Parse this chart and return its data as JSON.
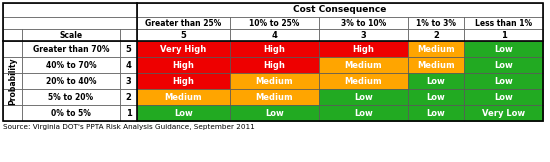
{
  "title": "Cost Consequence",
  "source_text": "Source: Virginia DOT's PPTA Risk Analysis Guidance, September 2011",
  "col_headers": [
    "Greater than 25%",
    "10% to 25%",
    "3% to 10%",
    "1% to 3%",
    "Less than 1%"
  ],
  "col_scales": [
    "5",
    "4",
    "3",
    "2",
    "1"
  ],
  "row_labels": [
    "Greater than 70%",
    "40% to 70%",
    "20% to 40%",
    "5% to 20%",
    "0% to 5%"
  ],
  "row_scales": [
    "5",
    "4",
    "3",
    "2",
    "1"
  ],
  "cell_texts": [
    [
      "Very High",
      "High",
      "High",
      "Medium",
      "Low"
    ],
    [
      "High",
      "High",
      "Medium",
      "Medium",
      "Low"
    ],
    [
      "High",
      "Medium",
      "Medium",
      "Low",
      "Low"
    ],
    [
      "Medium",
      "Medium",
      "Low",
      "Low",
      "Low"
    ],
    [
      "Low",
      "Low",
      "Low",
      "Low",
      "Very Low"
    ]
  ],
  "cell_colors": [
    [
      "#EE0000",
      "#EE0000",
      "#EE0000",
      "#FFA500",
      "#22AA22"
    ],
    [
      "#EE0000",
      "#EE0000",
      "#FFA500",
      "#FFA500",
      "#22AA22"
    ],
    [
      "#EE0000",
      "#FFA500",
      "#FFA500",
      "#22AA22",
      "#22AA22"
    ],
    [
      "#FFA500",
      "#FFA500",
      "#22AA22",
      "#22AA22",
      "#22AA22"
    ],
    [
      "#22AA22",
      "#22AA22",
      "#22AA22",
      "#22AA22",
      "#22AA22"
    ]
  ],
  "text_color": "#FFFFFF",
  "border_color": "#555555",
  "thick_border_color": "#000000",
  "probability_label": "Probability",
  "scale_label": "Scale",
  "figsize": [
    5.5,
    1.62
  ],
  "dpi": 100
}
